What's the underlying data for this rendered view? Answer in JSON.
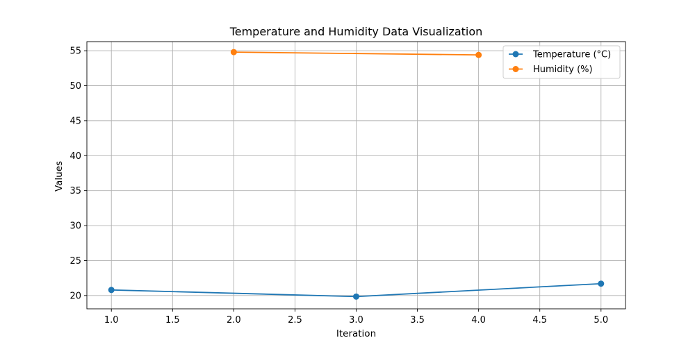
{
  "chart_data": {
    "type": "line",
    "title": "Temperature and Humidity Data Visualization",
    "xlabel": "Iteration",
    "ylabel": "Values",
    "xlim": [
      0.8,
      5.2
    ],
    "ylim": [
      18.1,
      56.3
    ],
    "xticks": [
      "1.0",
      "1.5",
      "2.0",
      "2.5",
      "3.0",
      "3.5",
      "4.0",
      "4.5",
      "5.0"
    ],
    "xtick_values": [
      1.0,
      1.5,
      2.0,
      2.5,
      3.0,
      3.5,
      4.0,
      4.5,
      5.0
    ],
    "yticks": [
      "20",
      "25",
      "30",
      "35",
      "40",
      "45",
      "50",
      "55"
    ],
    "ytick_values": [
      20,
      25,
      30,
      35,
      40,
      45,
      50,
      55
    ],
    "grid": true,
    "legend_position": "top-right",
    "series": [
      {
        "name": "Temperature (°C)",
        "color": "#1f77b4",
        "x": [
          1,
          3,
          5
        ],
        "y": [
          20.8,
          19.85,
          21.7
        ]
      },
      {
        "name": "Humidity (%)",
        "color": "#ff7f0e",
        "x": [
          2,
          4
        ],
        "y": [
          54.8,
          54.4
        ]
      }
    ]
  }
}
